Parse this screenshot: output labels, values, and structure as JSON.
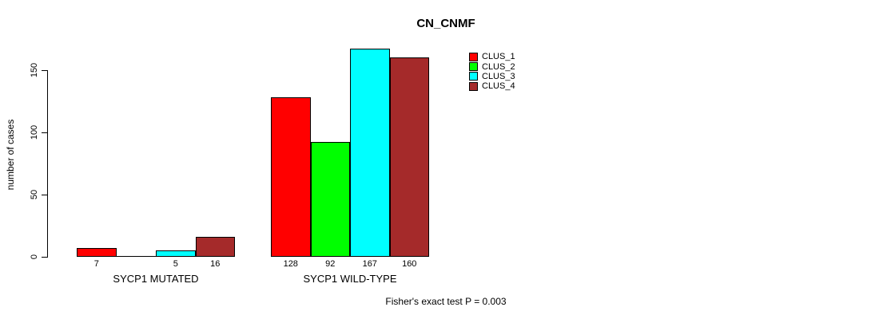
{
  "chart_data": {
    "type": "bar",
    "title": "CN_CNMF",
    "xlabel": "",
    "ylabel": "number of cases",
    "ylim": [
      0,
      150
    ],
    "yticks": [
      0,
      50,
      100,
      150
    ],
    "grid": false,
    "legend_position": "top-right",
    "groups": [
      "SYCP1 MUTATED",
      "SYCP1 WILD-TYPE"
    ],
    "series": [
      {
        "name": "CLUS_1",
        "color": "#FF0000",
        "values": [
          7,
          128
        ]
      },
      {
        "name": "CLUS_2",
        "color": "#00FF00",
        "values": [
          0,
          92
        ]
      },
      {
        "name": "CLUS_3",
        "color": "#00FFFF",
        "values": [
          5,
          167
        ]
      },
      {
        "name": "CLUS_4",
        "color": "#A52A2A",
        "values": [
          16,
          160
        ]
      }
    ],
    "bar_labels": [
      [
        "7",
        "",
        "5",
        "16"
      ],
      [
        "128",
        "92",
        "167",
        "160"
      ]
    ],
    "annotation": "Fisher's exact test P = 0.003"
  },
  "colors": {
    "axis": "#000000",
    "text": "#000000",
    "background": "#FFFFFF"
  }
}
